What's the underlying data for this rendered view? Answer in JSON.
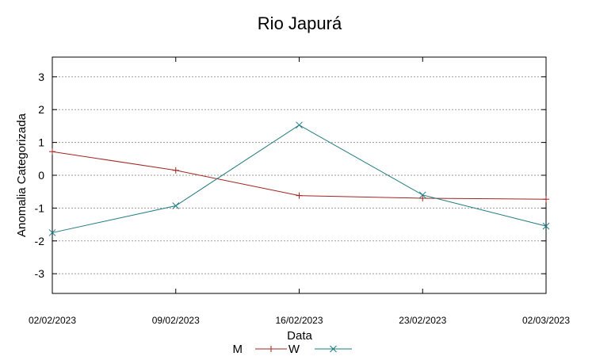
{
  "chart_data": {
    "type": "line",
    "title": "Rio Japurá",
    "xlabel": "Data",
    "ylabel": "Anomalia Categorizada",
    "categories": [
      "02/02/2023",
      "09/02/2023",
      "16/02/2023",
      "23/02/2023",
      "02/03/2023"
    ],
    "ylim": [
      -3.6,
      3.6
    ],
    "yticks": [
      -3,
      -2,
      -1,
      0,
      1,
      2,
      3
    ],
    "grid": true,
    "legend_position": "bottom",
    "series": [
      {
        "name": "M",
        "values": [
          0.72,
          0.15,
          -0.62,
          -0.7,
          -0.73
        ],
        "color": "#a0251f",
        "marker": "+"
      },
      {
        "name": "W",
        "values": [
          -1.75,
          -0.93,
          1.53,
          -0.6,
          -1.55
        ],
        "color": "#1e7b80",
        "marker": "x"
      }
    ]
  }
}
